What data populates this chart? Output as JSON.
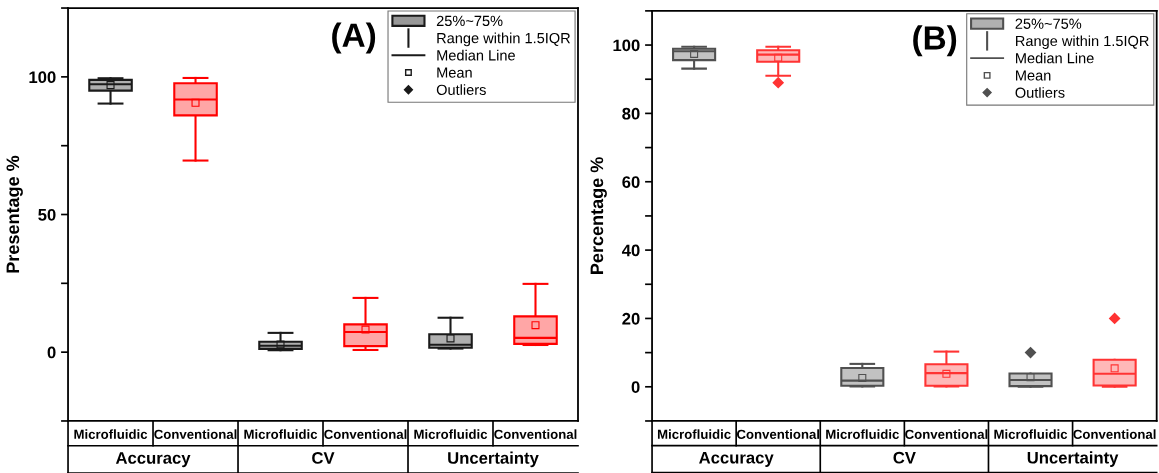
{
  "chart_data": [
    {
      "type": "box",
      "title": "(A)",
      "ylabel": "Presentage %",
      "categories": [
        "Microfluidic",
        "Conventional",
        "Microfluidic",
        "Conventional",
        "Microfluidic",
        "Conventional"
      ],
      "ylim": [
        -25,
        125
      ],
      "yticks": [
        {
          "value": -25,
          "label": null
        },
        0,
        {
          "value": 25,
          "label": null
        },
        50,
        {
          "value": 75,
          "label": null
        },
        100,
        {
          "value": 125,
          "label": null
        }
      ],
      "grid": false,
      "annotations": [
        "25%~75%",
        "Range within 1.5IQR",
        "Median Line",
        "Mean",
        "Outliers",
        "Accuracy",
        "CV",
        "Uncertainty"
      ],
      "colors": [
        "#1a1a1a",
        "#ff0000",
        "#1a1a1a",
        "#ff0000",
        "#1a1a1a",
        "#ff0000"
      ],
      "boxes": [
        {
          "low": 90.3,
          "q1": 95,
          "median": 97.3,
          "q3": 98.9,
          "high": 99.5,
          "mean": 97
        },
        {
          "low": 69.6,
          "q1": 86,
          "median": 91.8,
          "q3": 97.7,
          "high": 99.6,
          "mean": 90.6
        },
        {
          "low": 0.7,
          "q1": 1.2,
          "median": 2.3,
          "q3": 3.8,
          "high": 7,
          "mean": 2.8
        },
        {
          "low": 0.8,
          "q1": 2.2,
          "median": 7.3,
          "q3": 10.1,
          "high": 19.7,
          "mean": 8.2
        },
        {
          "low": 1.3,
          "q1": 1.6,
          "median": 2.7,
          "q3": 6.5,
          "high": 12.5,
          "mean": 5
        },
        {
          "low": 2.6,
          "q1": 3,
          "median": 5.2,
          "q3": 13,
          "high": 24.8,
          "mean": 9.8
        }
      ]
    },
    {
      "type": "box",
      "title": "(B)",
      "ylabel": "Percentage %",
      "categories": [
        "Microfluidic",
        "Conventional",
        "Microfluidic",
        "Conventional",
        "Microfluidic",
        "Conventional"
      ],
      "ylim": [
        -10,
        110
      ],
      "yticks": [
        {
          "value": -10,
          "label": null
        },
        0,
        {
          "value": 10,
          "label": null
        },
        20,
        {
          "value": 30,
          "label": null
        },
        40,
        {
          "value": 50,
          "label": null
        },
        60,
        {
          "value": 70,
          "label": null
        },
        80,
        {
          "value": 90,
          "label": null
        },
        100,
        {
          "value": 110,
          "label": null
        }
      ],
      "grid": false,
      "annotations": [
        "25%~75%",
        "Range within 1.5IQR",
        "Median Line",
        "Mean",
        "Outliers",
        "Accuracy",
        "CV",
        "Uncertainty"
      ],
      "colors": [
        "#505050",
        "#ff3333",
        "#505050",
        "#ff3333",
        "#505050",
        "#ff3333"
      ],
      "boxes": [
        {
          "low": 93.1,
          "q1": 95.6,
          "median": 98.2,
          "q3": 98.9,
          "high": 99.5,
          "mean": 97.4
        },
        {
          "low": 91,
          "q1": 95.1,
          "median": 97.2,
          "q3": 98.5,
          "high": 99.5,
          "mean": 96.3,
          "outliers": [
            89
          ]
        },
        {
          "low": 0.1,
          "q1": 0.3,
          "median": 1.8,
          "q3": 5.5,
          "high": 6.7,
          "mean": 2.6
        },
        {
          "low": 0.1,
          "q1": 0.3,
          "median": 4,
          "q3": 6.6,
          "high": 10.3,
          "mean": 3.8
        },
        {
          "low": 0,
          "q1": 0.2,
          "median": 2,
          "q3": 3.9,
          "high": 3.9,
          "mean": 2.8,
          "outliers": [
            10
          ]
        },
        {
          "low": 0,
          "q1": 0.4,
          "median": 3.8,
          "q3": 7.9,
          "high": 7.9,
          "mean": 5.4,
          "outliers": [
            20
          ]
        }
      ]
    }
  ]
}
